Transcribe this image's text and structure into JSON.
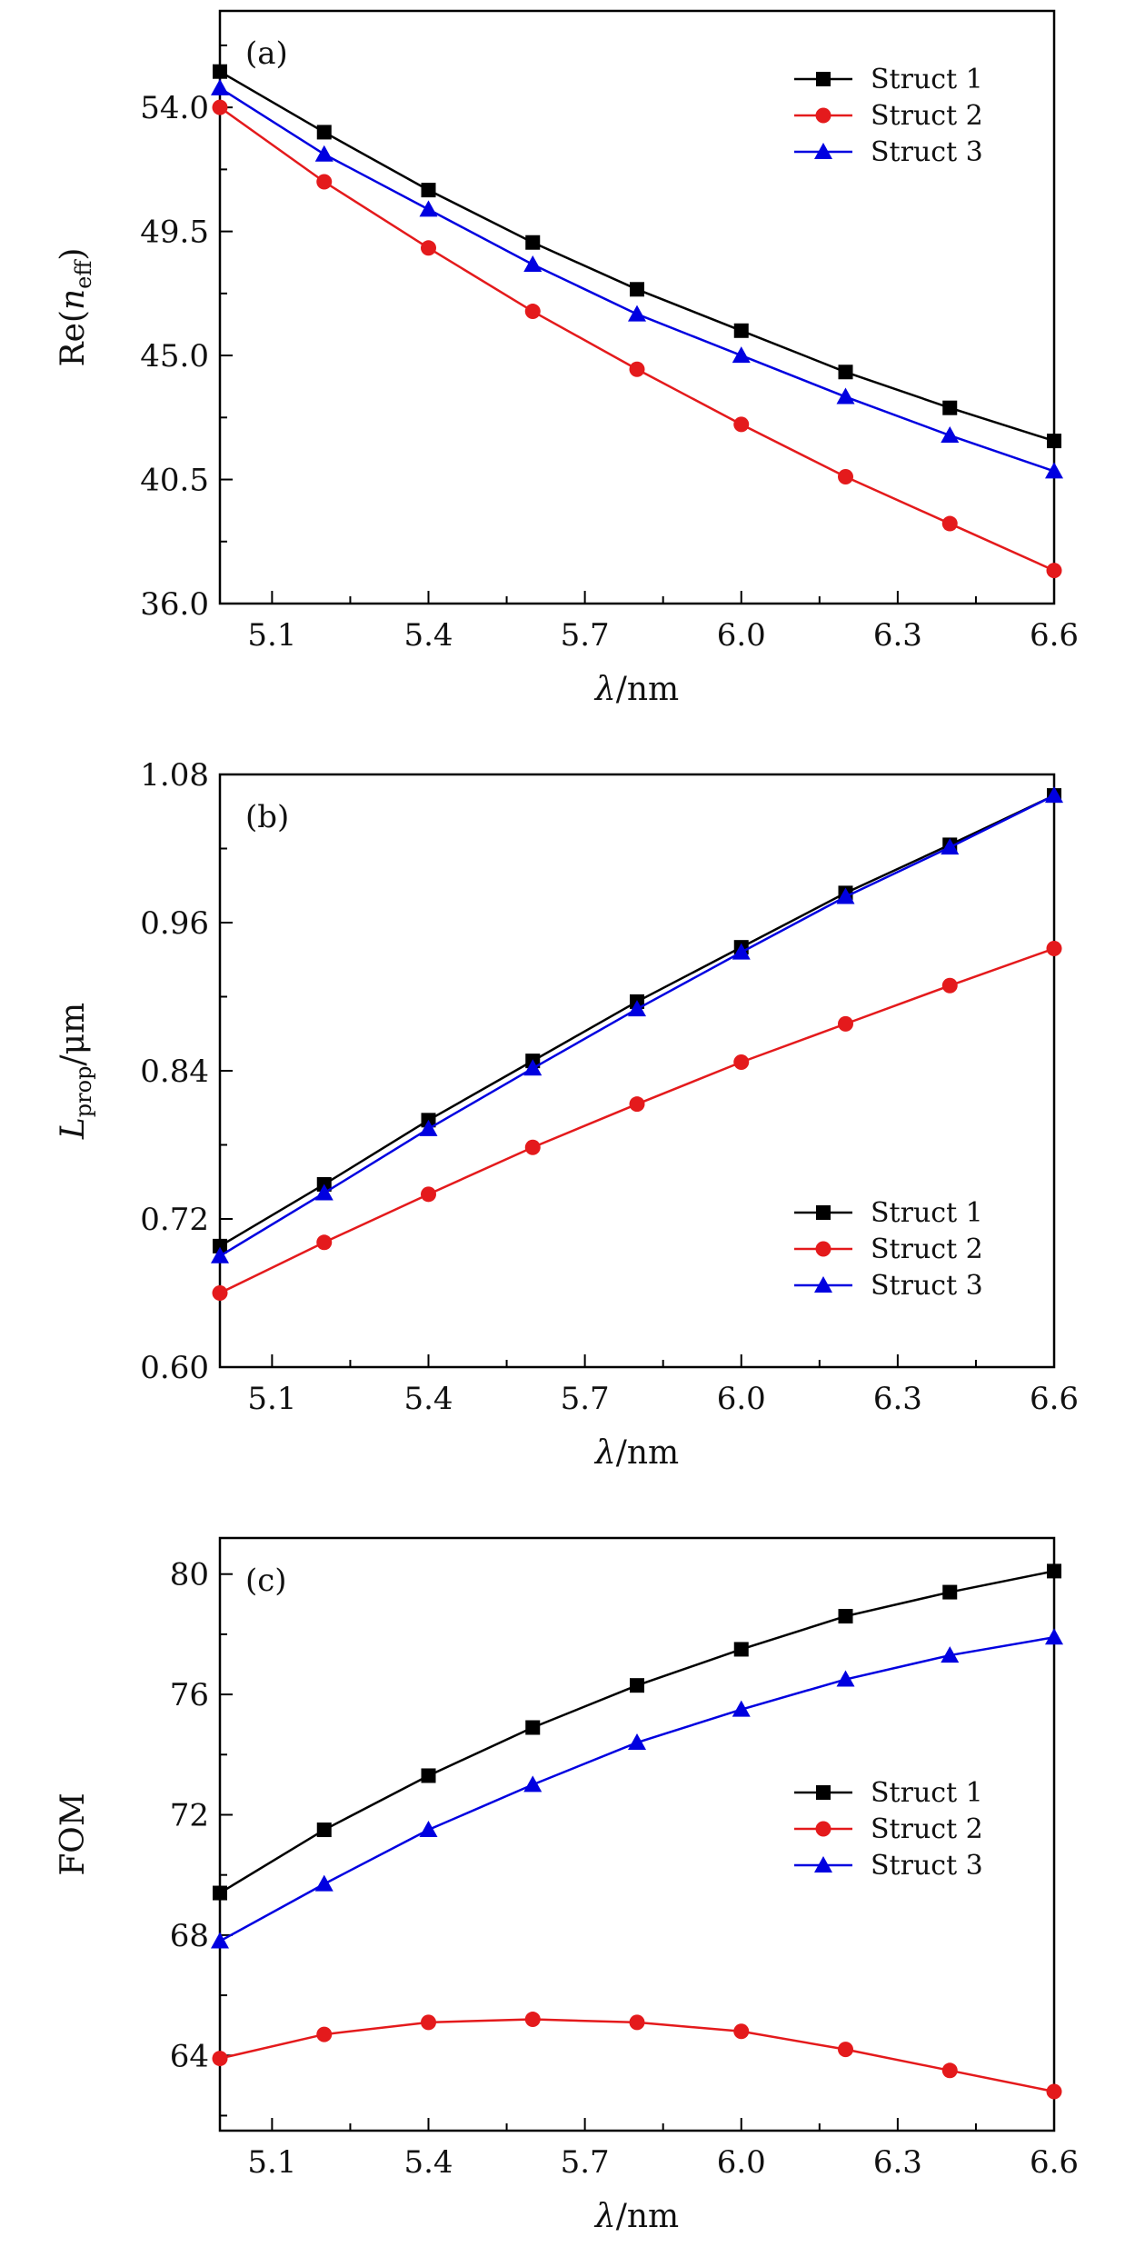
{
  "figure": {
    "x_title_symbol": "λ",
    "x_title_unit": "/nm"
  },
  "colors": {
    "struct1": "#000000",
    "struct2": "#e41a1c",
    "struct3": "#0000e0",
    "axis": "#000000"
  },
  "chart_data": [
    {
      "type": "line",
      "panel": "(a)",
      "ylabel_main": "Re(",
      "ylabel_italic": "n",
      "ylabel_sub": "eff",
      "ylabel_close": ")",
      "xlabel": "λ/nm",
      "x": [
        5.0,
        5.2,
        5.4,
        5.6,
        5.8,
        6.0,
        6.2,
        6.4,
        6.6
      ],
      "xlim": [
        5.0,
        6.6
      ],
      "xticks": [
        5.1,
        5.4,
        5.7,
        6.0,
        6.3,
        6.6
      ],
      "xtick_labels": [
        "5.1",
        "5.4",
        "5.7",
        "6.0",
        "6.3",
        "6.6"
      ],
      "ylim": [
        36.0,
        57.5
      ],
      "yticks": [
        36.0,
        40.5,
        45.0,
        49.5,
        54.0
      ],
      "ytick_labels": [
        "36.0",
        "40.5",
        "45.0",
        "49.5",
        "54.0"
      ],
      "legend_position": "top-right",
      "series": [
        {
          "name": "Struct 1",
          "marker": "square",
          "values": [
            55.3,
            53.1,
            51.0,
            49.1,
            47.4,
            45.9,
            44.4,
            43.1,
            41.9
          ]
        },
        {
          "name": "Struct 2",
          "marker": "circle",
          "values": [
            54.0,
            51.3,
            48.9,
            46.6,
            44.5,
            42.5,
            40.6,
            38.9,
            37.2
          ]
        },
        {
          "name": "Struct 3",
          "marker": "triangle",
          "values": [
            54.7,
            52.3,
            50.3,
            48.3,
            46.5,
            45.0,
            43.5,
            42.1,
            40.8
          ]
        }
      ]
    },
    {
      "type": "line",
      "panel": "(b)",
      "ylabel_main": "",
      "ylabel_italic": "L",
      "ylabel_sub": "prop",
      "ylabel_close": "/μm",
      "xlabel": "λ/nm",
      "x": [
        5.0,
        5.2,
        5.4,
        5.6,
        5.8,
        6.0,
        6.2,
        6.4,
        6.6
      ],
      "xlim": [
        5.0,
        6.6
      ],
      "xticks": [
        5.1,
        5.4,
        5.7,
        6.0,
        6.3,
        6.6
      ],
      "xtick_labels": [
        "5.1",
        "5.4",
        "5.7",
        "6.0",
        "6.3",
        "6.6"
      ],
      "ylim": [
        0.6,
        1.08
      ],
      "yticks": [
        0.6,
        0.72,
        0.84,
        0.96,
        1.08
      ],
      "ytick_labels": [
        "0.60",
        "0.72",
        "0.84",
        "0.96",
        "1.08"
      ],
      "legend_position": "bottom-right",
      "series": [
        {
          "name": "Struct 1",
          "marker": "square",
          "values": [
            0.698,
            0.748,
            0.8,
            0.848,
            0.896,
            0.94,
            0.984,
            1.023,
            1.063
          ]
        },
        {
          "name": "Struct 2",
          "marker": "circle",
          "values": [
            0.66,
            0.701,
            0.74,
            0.778,
            0.813,
            0.847,
            0.878,
            0.909,
            0.939
          ]
        },
        {
          "name": "Struct 3",
          "marker": "triangle",
          "values": [
            0.69,
            0.741,
            0.793,
            0.842,
            0.89,
            0.936,
            0.981,
            1.021,
            1.063
          ]
        }
      ]
    },
    {
      "type": "line",
      "panel": "(c)",
      "ylabel_main": "FOM",
      "ylabel_italic": "",
      "ylabel_sub": "",
      "ylabel_close": "",
      "xlabel": "λ/nm",
      "x": [
        5.0,
        5.2,
        5.4,
        5.6,
        5.8,
        6.0,
        6.2,
        6.4,
        6.6
      ],
      "xlim": [
        5.0,
        6.6
      ],
      "xticks": [
        5.1,
        5.4,
        5.7,
        6.0,
        6.3,
        6.6
      ],
      "xtick_labels": [
        "5.1",
        "5.4",
        "5.7",
        "6.0",
        "6.3",
        "6.6"
      ],
      "ylim": [
        61.5,
        81.2
      ],
      "yticks": [
        64,
        68,
        72,
        76,
        80
      ],
      "ytick_labels": [
        "64",
        "68",
        "72",
        "76",
        "80"
      ],
      "legend_position": "middle-right",
      "series": [
        {
          "name": "Struct 1",
          "marker": "square",
          "values": [
            69.4,
            71.5,
            73.3,
            74.9,
            76.3,
            77.5,
            78.6,
            79.4,
            80.1
          ]
        },
        {
          "name": "Struct 2",
          "marker": "circle",
          "values": [
            63.9,
            64.7,
            65.1,
            65.2,
            65.1,
            64.8,
            64.2,
            63.5,
            62.8
          ]
        },
        {
          "name": "Struct 3",
          "marker": "triangle",
          "values": [
            67.8,
            69.7,
            71.5,
            73.0,
            74.4,
            75.5,
            76.5,
            77.3,
            77.9
          ]
        }
      ]
    }
  ]
}
